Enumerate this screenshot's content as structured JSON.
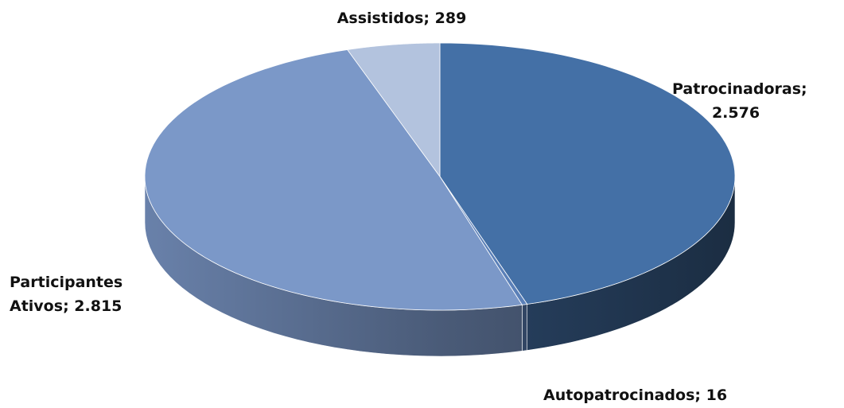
{
  "chart_data": {
    "type": "pie",
    "categories": [
      "Patrocinadoras",
      "Autopatrocinados",
      "Participantes Ativos",
      "Assistidos"
    ],
    "values": [
      2576,
      16,
      2815,
      289
    ],
    "value_labels": [
      "2.576",
      "16",
      "2.815",
      "289"
    ],
    "separator": ";",
    "colors": [
      "#4470a6",
      "#5b80b8",
      "#7b98c8",
      "#b3c3de"
    ]
  }
}
